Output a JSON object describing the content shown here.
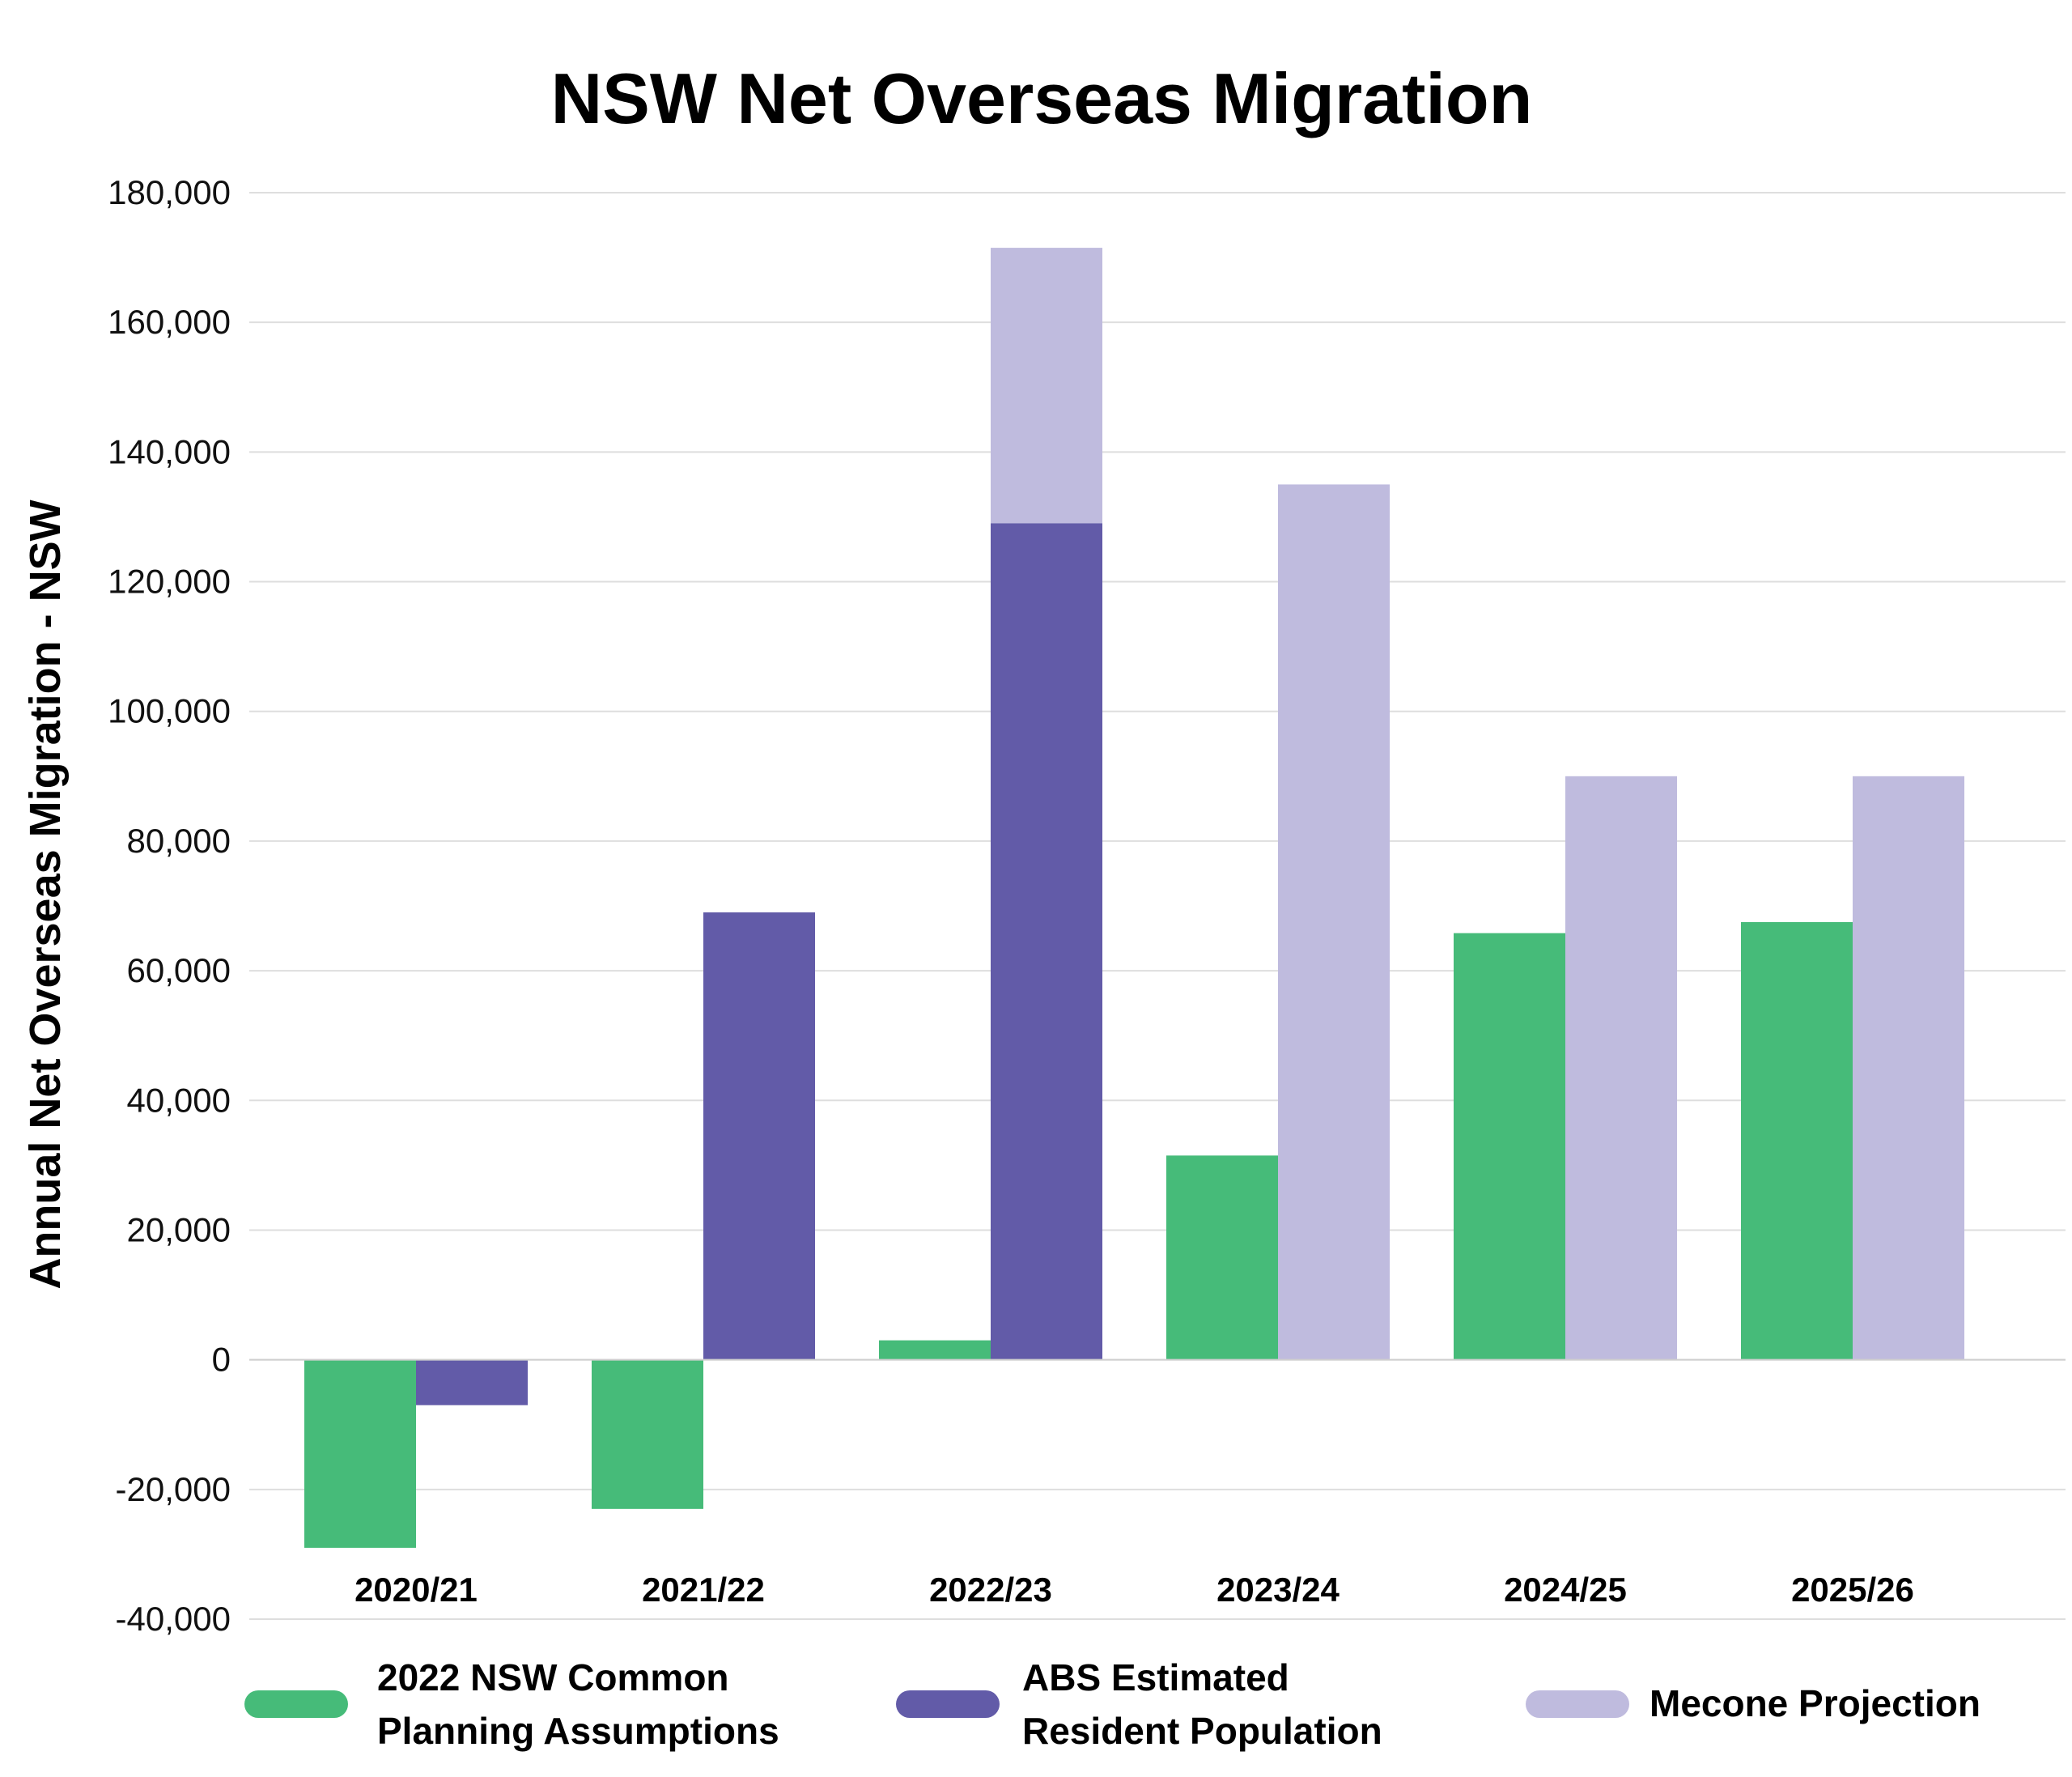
{
  "chart_data": {
    "type": "bar",
    "title": "NSW Net Overseas Migration",
    "xlabel": "",
    "ylabel": "Annual Net Overseas Migration - NSW",
    "ylim": [
      -40000,
      180000
    ],
    "yticks": [
      -40000,
      -20000,
      0,
      20000,
      40000,
      60000,
      80000,
      100000,
      120000,
      140000,
      160000,
      180000
    ],
    "ytick_labels": [
      "-40,000",
      "-20,000",
      "0",
      "20,000",
      "40,000",
      "60,000",
      "80,000",
      "100,000",
      "120,000",
      "140,000",
      "160,000",
      "180,000"
    ],
    "grid": true,
    "legend_position": "bottom",
    "categories": [
      "2020/21",
      "2021/22",
      "2022/23",
      "2023/24",
      "2024/25",
      "2025/26"
    ],
    "series": [
      {
        "name": "2022 NSW Common Planning Assumptions",
        "legend_lines": [
          "2022 NSW Common",
          "Planning Assumptions"
        ],
        "color": "#46bb79",
        "values": [
          -29000,
          -23000,
          3000,
          31500,
          65800,
          67500
        ]
      },
      {
        "name": "ABS Estimated Resident Population",
        "legend_lines": [
          "ABS Estimated",
          "Resident Population"
        ],
        "color": "#625ba8",
        "values": [
          -7000,
          69000,
          129000,
          null,
          null,
          null
        ]
      },
      {
        "name": "Mecone Projection",
        "legend_lines": [
          "Mecone Projection"
        ],
        "color": "#bfbbde",
        "values": [
          null,
          null,
          171500,
          135000,
          90000,
          90000
        ],
        "note": "2022/23 bar drawn from 0 to total, overlaid by ABS bar"
      }
    ]
  }
}
